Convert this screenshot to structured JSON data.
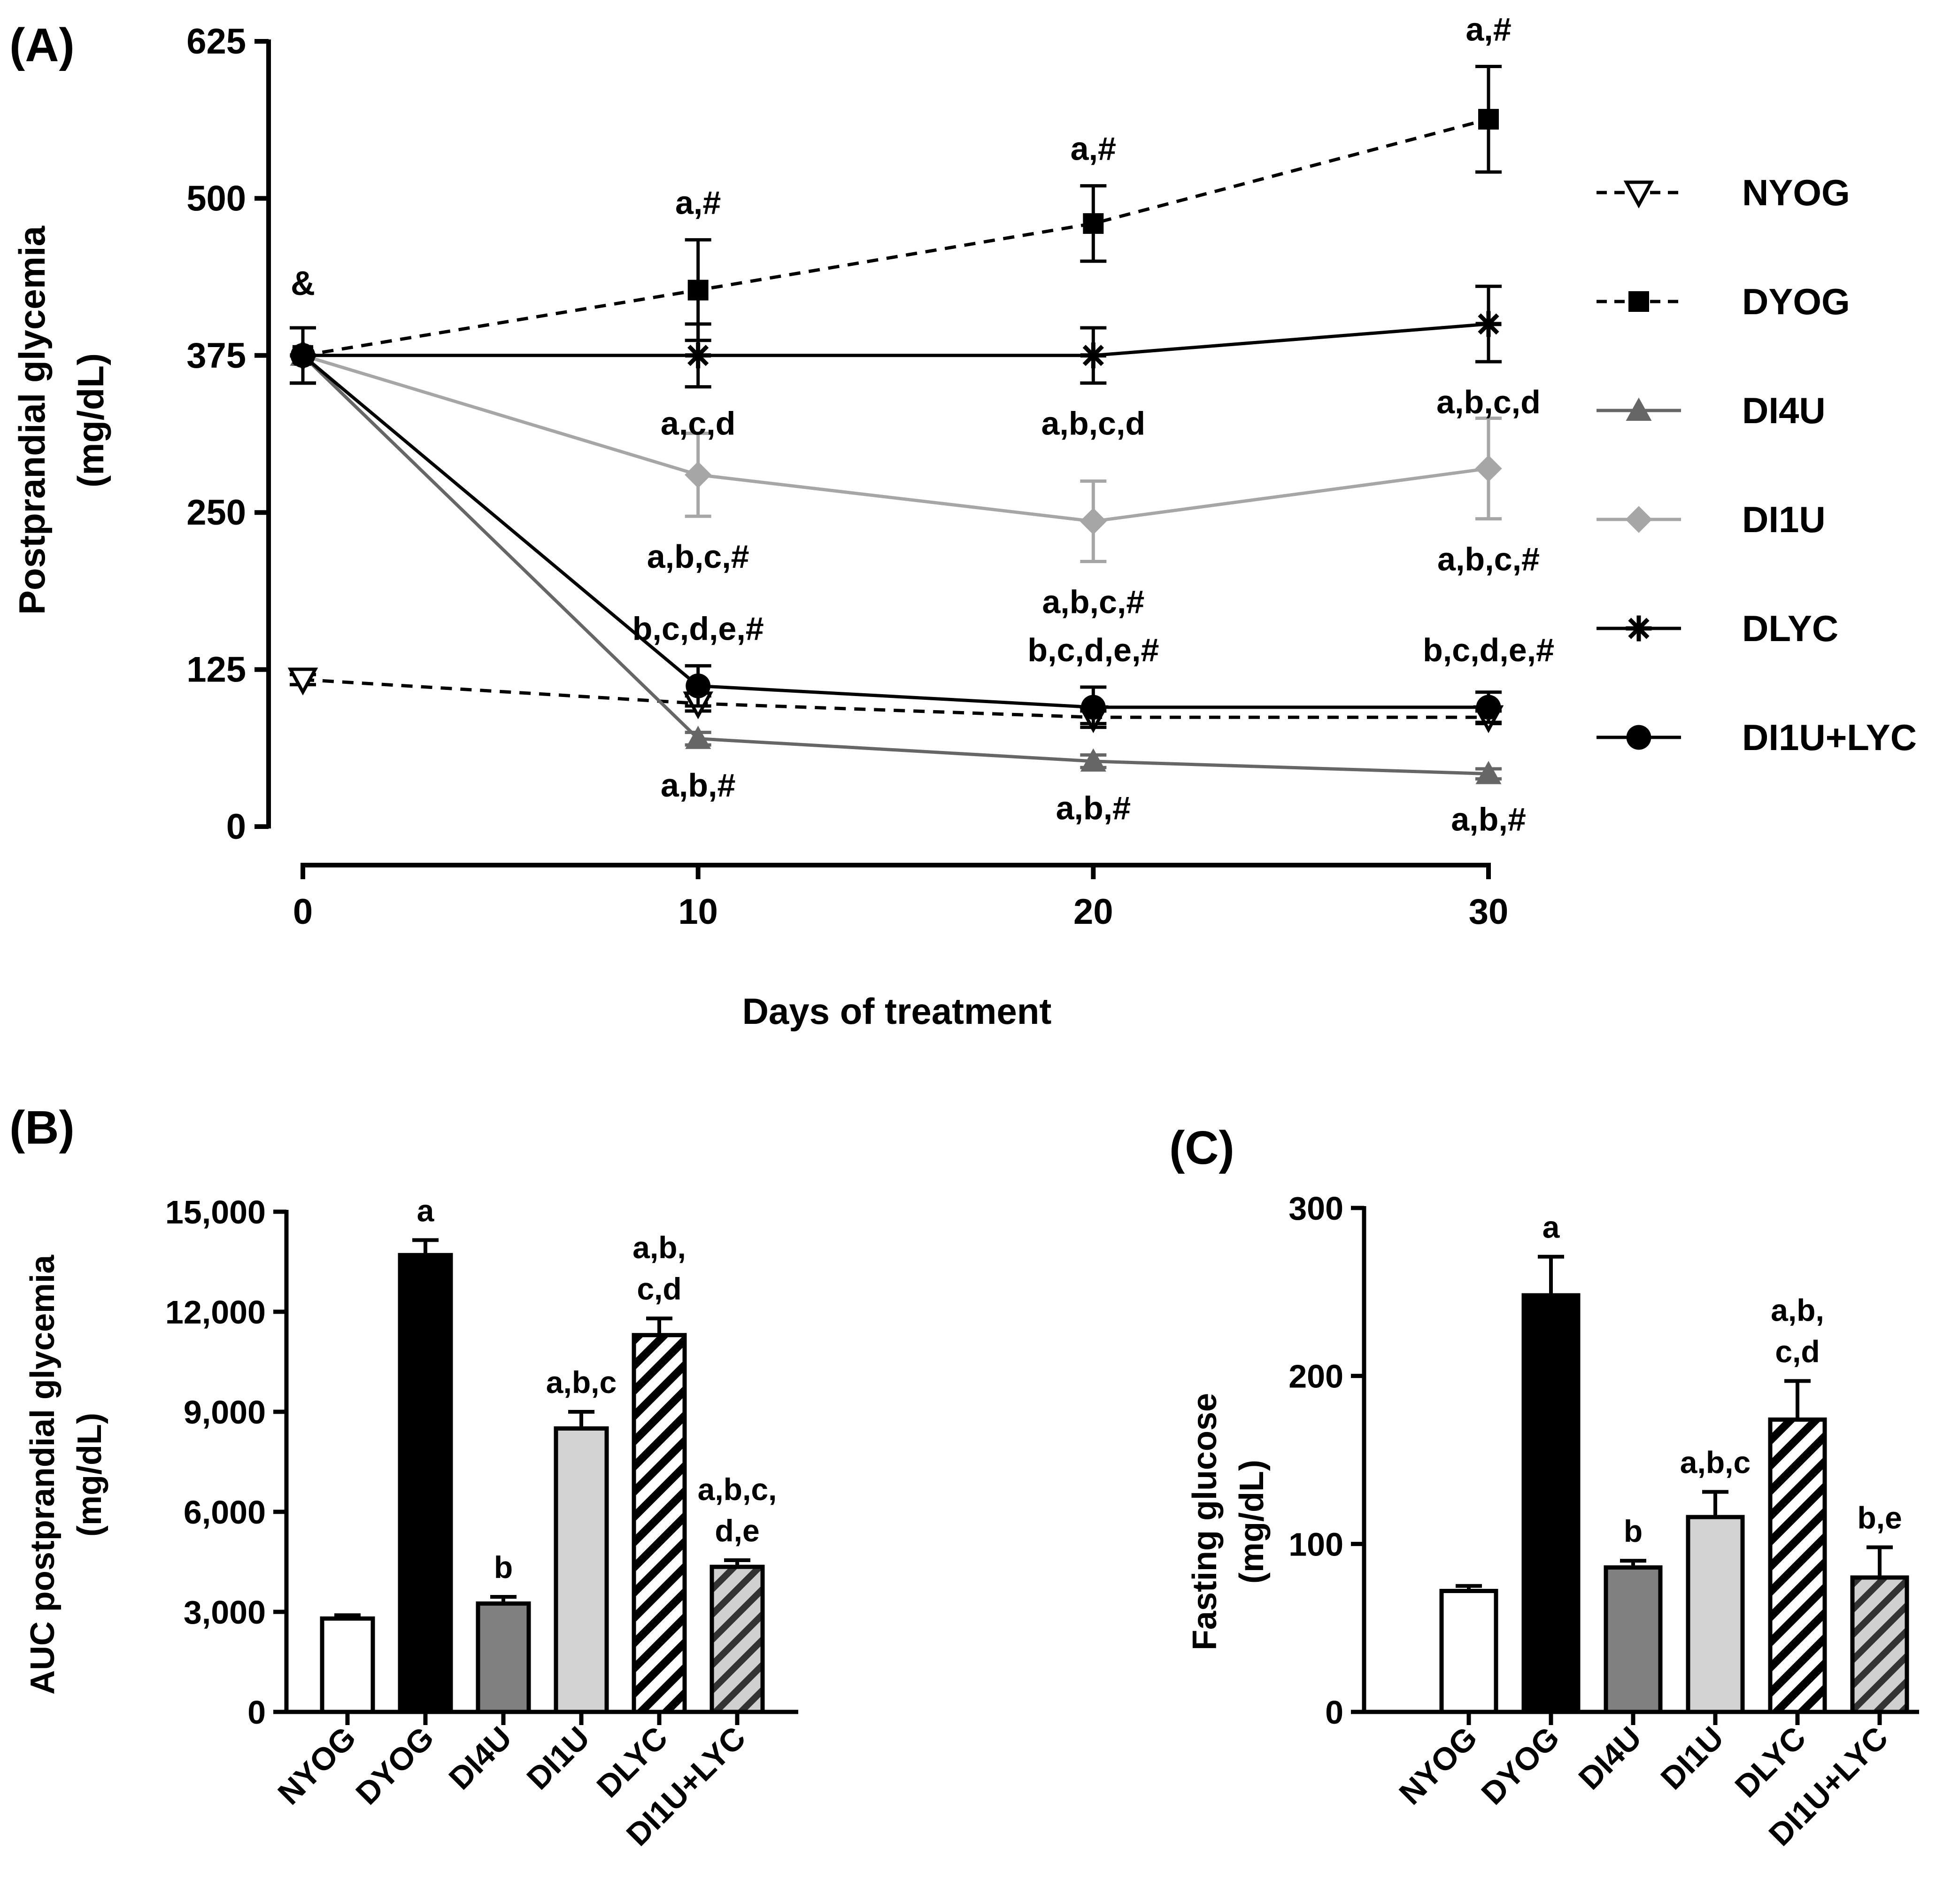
{
  "chart_data": [
    {
      "panel": "(A)",
      "type": "line",
      "xlabel": "Days of treatment",
      "ylabel_lines": [
        "Postprandial glycemia",
        "(mg/dL)"
      ],
      "xlim": [
        0,
        30
      ],
      "ylim": [
        0,
        625
      ],
      "xticks": [
        "0",
        "10",
        "20",
        "30"
      ],
      "yticks": [
        "0",
        "125",
        "250",
        "375",
        "500",
        "625"
      ],
      "x": [
        0,
        10,
        20,
        30
      ],
      "baseline_annotation": "&",
      "series": [
        {
          "name": "NYOG",
          "marker": "triangle-down-open",
          "line": "dashed",
          "color": "#000000",
          "values": [
            117,
            98,
            87,
            87
          ],
          "errors": [
            4,
            6,
            5,
            5
          ]
        },
        {
          "name": "DYOG",
          "marker": "square",
          "line": "dashed",
          "color": "#000000",
          "values": [
            375,
            427,
            480,
            563
          ],
          "errors": [
            22,
            40,
            30,
            42
          ]
        },
        {
          "name": "DI4U",
          "marker": "triangle-up",
          "line": "solid",
          "color": "#666666",
          "values": [
            375,
            70,
            52,
            42
          ],
          "errors": [
            22,
            5,
            5,
            4
          ]
        },
        {
          "name": "DI1U",
          "marker": "diamond",
          "line": "solid",
          "color": "#a6a6a6",
          "values": [
            375,
            280,
            243,
            285
          ],
          "errors": [
            22,
            33,
            32,
            40
          ]
        },
        {
          "name": "DLYC",
          "marker": "asterisk",
          "line": "solid",
          "color": "#000000",
          "values": [
            375,
            375,
            375,
            400
          ],
          "errors": [
            22,
            25,
            22,
            30
          ]
        },
        {
          "name": "DI1U+LYC",
          "marker": "circle",
          "line": "solid",
          "color": "#000000",
          "values": [
            375,
            112,
            95,
            95
          ],
          "errors": [
            22,
            16,
            16,
            12
          ]
        }
      ],
      "annotations": [
        {
          "x": 10,
          "y": 427,
          "text": "a,#",
          "place": "above-error"
        },
        {
          "x": 20,
          "y": 480,
          "text": "a,#",
          "place": "above-error"
        },
        {
          "x": 30,
          "y": 563,
          "text": "a,#",
          "place": "above-error"
        },
        {
          "x": 10,
          "y": 375,
          "text": "a,c,d",
          "place": "below-error"
        },
        {
          "x": 20,
          "y": 375,
          "text": "a,b,c,d",
          "place": "below-error"
        },
        {
          "x": 30,
          "y": 400,
          "text": "a,b,c,d",
          "place": "below-error"
        },
        {
          "x": 10,
          "y": 280,
          "text": "a,b,c,#",
          "place": "below-error"
        },
        {
          "x": 20,
          "y": 243,
          "text": "a,b,c,#",
          "place": "below-error"
        },
        {
          "x": 30,
          "y": 285,
          "text": "a,b,c,#",
          "place": "below-error"
        },
        {
          "x": 10,
          "y": 112,
          "text": "b,c,d,e,#",
          "place": "above-error"
        },
        {
          "x": 20,
          "y": 95,
          "text": "b,c,d,e,#",
          "place": "above-error"
        },
        {
          "x": 30,
          "y": 95,
          "text": "b,c,d,e,#",
          "place": "above-error"
        },
        {
          "x": 10,
          "y": 70,
          "text": "a,b,#",
          "place": "below-error"
        },
        {
          "x": 20,
          "y": 52,
          "text": "a,b,#",
          "place": "below-error"
        },
        {
          "x": 30,
          "y": 42,
          "text": "a,b,#",
          "place": "below-error"
        }
      ]
    },
    {
      "panel": "(B)",
      "type": "bar",
      "ylabel_lines": [
        "AUC postprandial glycemia",
        "(mg/dL)"
      ],
      "ylim": [
        0,
        15000
      ],
      "yticks": [
        "0",
        "3,000",
        "6,000",
        "9,000",
        "12,000",
        "15,000"
      ],
      "categories": [
        "NYOG",
        "DYOG",
        "DI4U",
        "DI1U",
        "DLYC",
        "DI1U+LYC"
      ],
      "values": [
        2800,
        13700,
        3250,
        8500,
        11300,
        4350
      ],
      "errors": [
        100,
        450,
        200,
        500,
        500,
        200
      ],
      "fills": [
        "white",
        "black",
        "darkgray",
        "lightgray",
        "hatch-white",
        "hatch-gray"
      ],
      "labels": [
        [],
        [
          "a"
        ],
        [
          "b"
        ],
        [
          "a,b,c"
        ],
        [
          "a,b,",
          "c,d"
        ],
        [
          "a,b,c,",
          "d,e"
        ]
      ]
    },
    {
      "panel": "(C)",
      "type": "bar",
      "ylabel_lines": [
        "Fasting glucose",
        "(mg/dL)"
      ],
      "ylim": [
        0,
        300
      ],
      "yticks": [
        "0",
        "100",
        "200",
        "300"
      ],
      "categories": [
        "NYOG",
        "DYOG",
        "DI4U",
        "DI1U",
        "DLYC",
        "DI1U+LYC"
      ],
      "values": [
        72,
        248,
        86,
        116,
        174,
        80
      ],
      "errors": [
        3,
        23,
        4,
        15,
        23,
        18
      ],
      "fills": [
        "white",
        "black",
        "darkgray",
        "lightgray",
        "hatch-white",
        "hatch-gray"
      ],
      "labels": [
        [],
        [
          "a"
        ],
        [
          "b"
        ],
        [
          "a,b,c"
        ],
        [
          "a,b,",
          "c,d"
        ],
        [
          "b,e"
        ]
      ]
    }
  ]
}
